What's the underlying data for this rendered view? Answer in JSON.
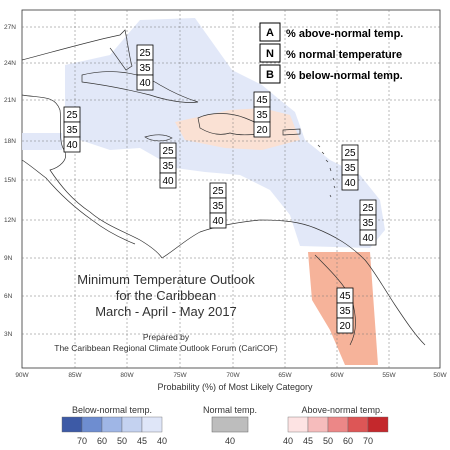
{
  "map": {
    "lat_labels": [
      "27N",
      "24N",
      "21N",
      "18N",
      "15N",
      "12N",
      "9N",
      "6N",
      "3N"
    ],
    "lon_labels": [
      "90W",
      "85W",
      "80W",
      "75W",
      "70W",
      "65W",
      "60W",
      "55W",
      "50W"
    ],
    "colors": {
      "below_normal": [
        "#3d5aa6",
        "#6e8dd0",
        "#9fb6e6",
        "#c4d2f0",
        "#dfe6f8"
      ],
      "normal": "#bdbdbd",
      "above_normal": [
        "#fde3e3",
        "#f6bcbc",
        "#ec8787",
        "#dd5656",
        "#c4282c"
      ],
      "region_above": "#f4a688",
      "region_above_light": "#fbe0d2",
      "region_below": "#dfe5f7"
    }
  },
  "key": {
    "a_letter": "A",
    "a_text": "% above-normal temp.",
    "n_letter": "N",
    "n_text": "% normal temperature",
    "b_letter": "B",
    "b_text": "% below-normal temp."
  },
  "regions": [
    {
      "id": "bahamas",
      "a": "25",
      "n": "35",
      "b": "40"
    },
    {
      "id": "west-caribbean",
      "a": "25",
      "n": "35",
      "b": "40"
    },
    {
      "id": "hispaniola",
      "a": "45",
      "n": "35",
      "b": "20"
    },
    {
      "id": "jamaica-central",
      "a": "25",
      "n": "35",
      "b": "40"
    },
    {
      "id": "southern-caribbean",
      "a": "25",
      "n": "35",
      "b": "40"
    },
    {
      "id": "lesser-antilles-north",
      "a": "25",
      "n": "35",
      "b": "40"
    },
    {
      "id": "lesser-antilles-south",
      "a": "25",
      "n": "35",
      "b": "40"
    },
    {
      "id": "guianas",
      "a": "45",
      "n": "35",
      "b": "20"
    }
  ],
  "title": {
    "line1": "Minimum Temperature Outlook",
    "line2": "for the Caribbean",
    "line3": "March - April - May 2017",
    "prepared1": "Prepared by",
    "prepared2": "The Caribbean Regional Climate Outlook Forum (CariCOF)"
  },
  "legend": {
    "title": "Probability (%) of Most Likely Category",
    "below_label": "Below-normal temp.",
    "below_values": [
      "70",
      "60",
      "50",
      "45",
      "40"
    ],
    "normal_label": "Normal temp.",
    "normal_value": "40",
    "above_label": "Above-normal temp.",
    "above_values": [
      "40",
      "45",
      "50",
      "60",
      "70"
    ]
  }
}
